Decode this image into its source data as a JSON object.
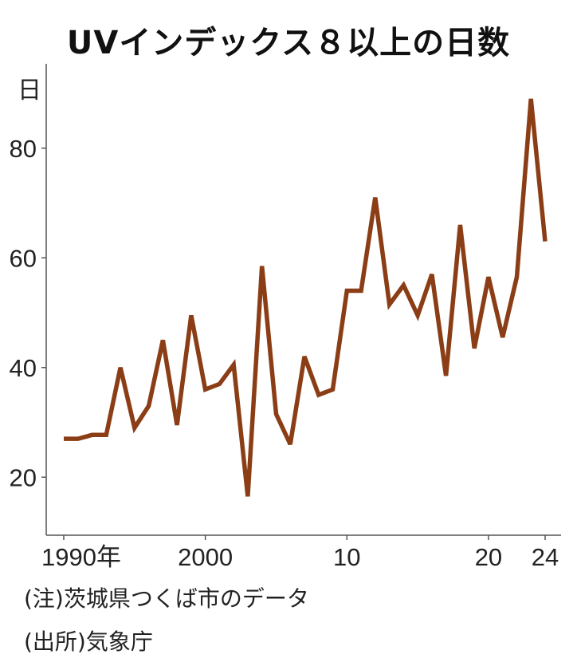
{
  "chart_data": {
    "type": "line",
    "title": "UVインデックス８以上の日数",
    "ylabel": "日",
    "ylim": [
      10,
      90
    ],
    "xlim": [
      1990,
      2024
    ],
    "yticks": [
      20,
      40,
      60,
      80
    ],
    "xticks": [
      {
        "value": 1990,
        "label": "1990年"
      },
      {
        "value": 2000,
        "label": "2000"
      },
      {
        "value": 2010,
        "label": "10"
      },
      {
        "value": 2020,
        "label": "20"
      },
      {
        "value": 2024,
        "label": "24"
      }
    ],
    "line_color": "#8b3e16",
    "x": [
      1990,
      1991,
      1992,
      1993,
      1994,
      1995,
      1996,
      1997,
      1998,
      1999,
      2000,
      2001,
      2002,
      2003,
      2004,
      2005,
      2006,
      2007,
      2008,
      2009,
      2010,
      2011,
      2012,
      2013,
      2014,
      2015,
      2016,
      2017,
      2018,
      2019,
      2020,
      2021,
      2022,
      2023,
      2024
    ],
    "values": [
      27,
      27,
      27.7,
      27.7,
      40,
      29,
      33,
      45,
      29.5,
      49.5,
      36,
      37,
      40.5,
      16.5,
      58.5,
      31.5,
      26,
      42,
      35,
      36,
      54,
      54,
      71,
      51.5,
      55,
      49.5,
      57,
      38.5,
      66,
      43.5,
      56.5,
      45.5,
      56.5,
      89,
      63
    ]
  },
  "notes": {
    "note": "(注)茨城県つくば市のデータ",
    "source": "(出所)気象庁"
  }
}
